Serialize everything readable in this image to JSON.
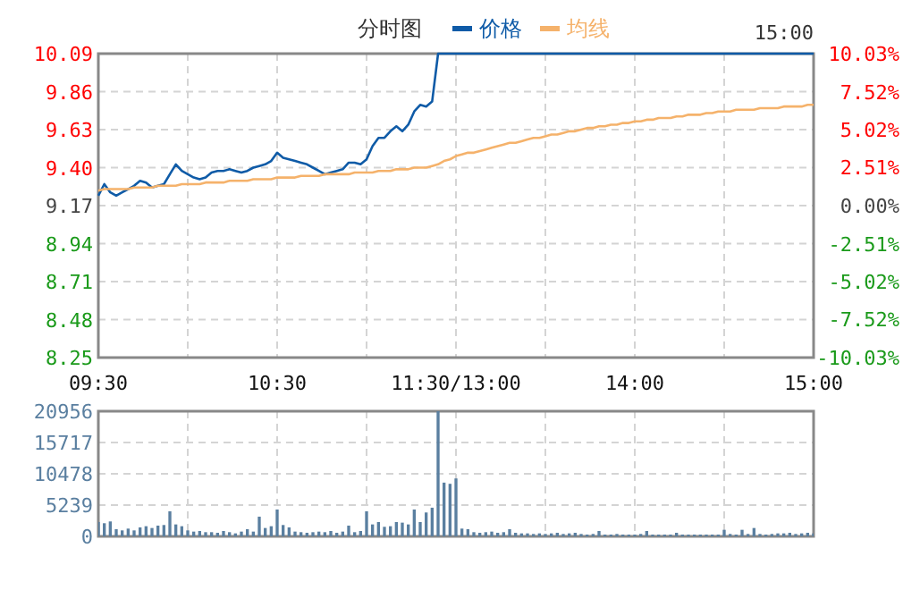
{
  "chart_data": [
    {
      "type": "line",
      "title": "分时图",
      "annotations": [
        "15:00"
      ],
      "legend": "top",
      "grid": true,
      "categories": [
        "09:30",
        null,
        null,
        null,
        null,
        null,
        null,
        null,
        null,
        null,
        null,
        null,
        null,
        null,
        null,
        null,
        null,
        null,
        null,
        null,
        null,
        null,
        null,
        null,
        null,
        null,
        null,
        null,
        null,
        null,
        "10:30",
        null,
        null,
        null,
        null,
        null,
        null,
        null,
        null,
        null,
        null,
        null,
        null,
        null,
        null,
        null,
        null,
        null,
        null,
        null,
        null,
        null,
        null,
        null,
        null,
        null,
        null,
        null,
        null,
        null,
        "11:30/13:00",
        null,
        null,
        null,
        null,
        null,
        null,
        null,
        null,
        null,
        null,
        null,
        null,
        null,
        null,
        null,
        null,
        null,
        null,
        null,
        null,
        null,
        null,
        null,
        null,
        null,
        null,
        null,
        null,
        null,
        "14:00",
        null,
        null,
        null,
        null,
        null,
        null,
        null,
        null,
        null,
        null,
        null,
        null,
        null,
        null,
        null,
        null,
        null,
        null,
        null,
        null,
        null,
        null,
        null,
        null,
        null,
        null,
        null,
        null,
        null,
        "15:00"
      ],
      "ylim": [
        8.25,
        10.09
      ],
      "yticks": [
        {
          "value": 8.25,
          "label": "8.25"
        },
        {
          "value": 8.48,
          "label": "8.48"
        },
        {
          "value": 8.71,
          "label": "8.71"
        },
        {
          "value": 8.94,
          "label": "8.94"
        },
        {
          "value": 9.17,
          "label": "9.17"
        },
        {
          "value": 9.4,
          "label": "9.40"
        },
        {
          "value": 9.63,
          "label": "9.63"
        },
        {
          "value": 9.86,
          "label": "9.86"
        },
        {
          "value": 10.09,
          "label": "10.09"
        }
      ],
      "y2lim": [
        -10.03,
        10.03
      ],
      "y2ticks": [
        {
          "value": -10.03,
          "label": "-10.03%"
        },
        {
          "value": -7.52,
          "label": "-7.52%"
        },
        {
          "value": -5.02,
          "label": "-5.02%"
        },
        {
          "value": -2.51,
          "label": "-2.51%"
        },
        {
          "value": 0,
          "label": "0.00%"
        },
        {
          "value": 2.51,
          "label": "2.51%"
        },
        {
          "value": 5.02,
          "label": "5.02%"
        },
        {
          "value": 7.52,
          "label": "7.52%"
        },
        {
          "value": 10.03,
          "label": "10.03%"
        }
      ],
      "series": [
        {
          "name": "价格",
          "color": "#0f5ba7",
          "values": [
            9.23,
            9.3,
            9.25,
            9.23,
            9.25,
            9.27,
            9.29,
            9.32,
            9.31,
            9.28,
            9.29,
            9.3,
            9.36,
            9.42,
            9.38,
            9.36,
            9.34,
            9.33,
            9.34,
            9.37,
            9.38,
            9.38,
            9.39,
            9.38,
            9.37,
            9.38,
            9.4,
            9.41,
            9.42,
            9.44,
            9.49,
            9.46,
            9.45,
            9.44,
            9.43,
            9.42,
            9.4,
            9.38,
            9.36,
            9.37,
            9.38,
            9.39,
            9.43,
            9.43,
            9.42,
            9.45,
            9.53,
            9.58,
            9.58,
            9.62,
            9.65,
            9.62,
            9.66,
            9.74,
            9.78,
            9.77,
            9.8,
            10.09,
            10.09,
            10.09,
            10.09,
            10.09,
            10.09,
            10.09,
            10.09,
            10.09,
            10.09,
            10.09,
            10.09,
            10.09,
            10.09,
            10.09,
            10.09,
            10.09,
            10.09,
            10.09,
            10.09,
            10.09,
            10.09,
            10.09,
            10.09,
            10.09,
            10.09,
            10.09,
            10.09,
            10.09,
            10.09,
            10.09,
            10.09,
            10.09,
            10.09,
            10.09,
            10.09,
            10.09,
            10.09,
            10.09,
            10.09,
            10.09,
            10.09,
            10.09,
            10.09,
            10.09,
            10.09,
            10.09,
            10.09,
            10.09,
            10.09,
            10.09,
            10.09,
            10.09,
            10.09,
            10.09,
            10.09,
            10.09,
            10.09,
            10.09,
            10.09,
            10.09,
            10.09,
            10.09,
            10.09
          ]
        },
        {
          "name": "均线",
          "color": "#f5b26b",
          "values": [
            9.26,
            9.27,
            9.27,
            9.27,
            9.27,
            9.27,
            9.28,
            9.28,
            9.28,
            9.28,
            9.29,
            9.29,
            9.29,
            9.29,
            9.3,
            9.3,
            9.3,
            9.3,
            9.31,
            9.31,
            9.31,
            9.31,
            9.32,
            9.32,
            9.32,
            9.32,
            9.33,
            9.33,
            9.33,
            9.33,
            9.34,
            9.34,
            9.34,
            9.34,
            9.35,
            9.35,
            9.35,
            9.35,
            9.36,
            9.36,
            9.36,
            9.36,
            9.36,
            9.37,
            9.37,
            9.37,
            9.37,
            9.38,
            9.38,
            9.38,
            9.39,
            9.39,
            9.39,
            9.4,
            9.4,
            9.4,
            9.41,
            9.42,
            9.44,
            9.45,
            9.47,
            9.48,
            9.49,
            9.49,
            9.5,
            9.51,
            9.52,
            9.53,
            9.54,
            9.55,
            9.55,
            9.56,
            9.57,
            9.58,
            9.58,
            9.59,
            9.6,
            9.6,
            9.61,
            9.62,
            9.62,
            9.63,
            9.64,
            9.64,
            9.65,
            9.65,
            9.66,
            9.66,
            9.67,
            9.67,
            9.68,
            9.68,
            9.69,
            9.69,
            9.7,
            9.7,
            9.7,
            9.71,
            9.71,
            9.72,
            9.72,
            9.72,
            9.73,
            9.73,
            9.74,
            9.74,
            9.74,
            9.75,
            9.75,
            9.75,
            9.75,
            9.76,
            9.76,
            9.76,
            9.76,
            9.77,
            9.77,
            9.77,
            9.77,
            9.78,
            9.78
          ]
        }
      ]
    },
    {
      "type": "bar",
      "grid": true,
      "tick_labels": "y",
      "categories": [
        null,
        null,
        null,
        null,
        null,
        null,
        null,
        null,
        null,
        null,
        null,
        null,
        null,
        null,
        null,
        null,
        null,
        null,
        null,
        null,
        null,
        null,
        null,
        null,
        null,
        null,
        null,
        null,
        null,
        null,
        null,
        null,
        null,
        null,
        null,
        null,
        null,
        null,
        null,
        null,
        null,
        null,
        null,
        null,
        null,
        null,
        null,
        null,
        null,
        null,
        null,
        null,
        null,
        null,
        null,
        null,
        null,
        null,
        null,
        null,
        null,
        null,
        null,
        null,
        null,
        null,
        null,
        null,
        null,
        null,
        null,
        null,
        null,
        null,
        null,
        null,
        null,
        null,
        null,
        null,
        null,
        null,
        null,
        null,
        null,
        null,
        null,
        null,
        null,
        null,
        null,
        null,
        null,
        null,
        null,
        null,
        null,
        null,
        null,
        null,
        null,
        null,
        null,
        null,
        null,
        null,
        null,
        null,
        null,
        null,
        null,
        null,
        null,
        null,
        null,
        null,
        null,
        null,
        null,
        null,
        null
      ],
      "ylim": [
        0,
        20956
      ],
      "yticks": [
        0,
        5239,
        10478,
        15717,
        20956
      ],
      "series": [
        {
          "color": "#5a7fa0",
          "values": [
            2400,
            2200,
            2500,
            1200,
            1000,
            1300,
            1000,
            1500,
            1700,
            1400,
            1800,
            1900,
            4200,
            2000,
            1700,
            1000,
            800,
            900,
            700,
            700,
            600,
            900,
            700,
            500,
            800,
            1200,
            800,
            3300,
            1400,
            1700,
            4500,
            1900,
            1500,
            800,
            700,
            600,
            700,
            800,
            700,
            900,
            600,
            800,
            1800,
            700,
            900,
            4200,
            2000,
            2400,
            1600,
            1700,
            2400,
            2300,
            2000,
            4500,
            2400,
            4000,
            4800,
            20956,
            9000,
            8800,
            9700,
            1300,
            1200,
            700,
            600,
            700,
            800,
            600,
            700,
            1200,
            600,
            500,
            500,
            400,
            500,
            400,
            500,
            600,
            400,
            500,
            600,
            400,
            300,
            400,
            900,
            300,
            300,
            400,
            300,
            300,
            300,
            400,
            900,
            300,
            300,
            300,
            300,
            600,
            300,
            300,
            300,
            300,
            300,
            300,
            300,
            1100,
            400,
            300,
            1100,
            400,
            1400,
            400,
            300,
            400,
            500,
            500,
            600,
            400,
            500,
            600,
            500
          ]
        }
      ]
    }
  ]
}
